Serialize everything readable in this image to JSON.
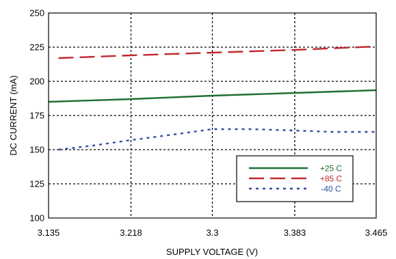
{
  "chart_data": {
    "type": "line",
    "title": "",
    "xlabel": "SUPPLY VOLTAGE (V)",
    "ylabel": "DC CURRENT (mA)",
    "xlim": [
      3.135,
      3.465
    ],
    "ylim": [
      100,
      250
    ],
    "x_ticks": [
      3.135,
      3.218,
      3.3,
      3.383,
      3.465
    ],
    "x_tick_labels": [
      "3.135",
      "3.218",
      "3.3",
      "3.383",
      "3.465"
    ],
    "y_ticks": [
      100,
      125,
      150,
      175,
      200,
      225,
      250
    ],
    "y_tick_labels": [
      "100",
      "125",
      "150",
      "175",
      "200",
      "225",
      "250"
    ],
    "grid": true,
    "legend_position": "bottom-right",
    "series": [
      {
        "name": "+25 C",
        "color": "#1e6e33",
        "style": "solid",
        "x": [
          3.135,
          3.218,
          3.3,
          3.383,
          3.465
        ],
        "y": [
          185,
          187,
          189.5,
          191.5,
          193.5
        ]
      },
      {
        "name": "+85 C",
        "color": "#c0282d",
        "style": "dash",
        "x": [
          3.145,
          3.218,
          3.3,
          3.383,
          3.465
        ],
        "y": [
          217,
          219,
          221,
          223,
          225.5
        ]
      },
      {
        "name": "-40 C",
        "color": "#2e4fa0",
        "style": "dot",
        "x": [
          3.145,
          3.18,
          3.218,
          3.26,
          3.3,
          3.34,
          3.383,
          3.42,
          3.465
        ],
        "y": [
          150,
          153,
          157,
          161,
          165,
          165,
          164,
          163,
          163
        ]
      }
    ]
  }
}
